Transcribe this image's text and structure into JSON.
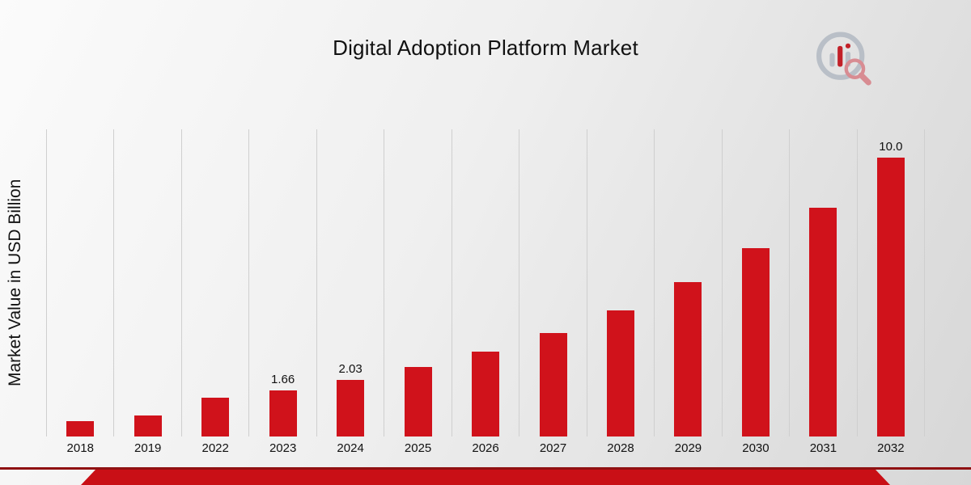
{
  "page": {
    "title": "Digital Adoption Platform Market"
  },
  "chart_data": {
    "type": "bar",
    "title": "Digital Adoption Platform Market",
    "xlabel": "",
    "ylabel": "Market Value in USD Billion",
    "categories": [
      "2018",
      "2019",
      "2022",
      "2023",
      "2024",
      "2025",
      "2026",
      "2027",
      "2028",
      "2029",
      "2030",
      "2031",
      "2032"
    ],
    "values": [
      0.55,
      0.75,
      1.38,
      1.66,
      2.03,
      2.48,
      3.03,
      3.7,
      4.52,
      5.52,
      6.74,
      8.19,
      10.0
    ],
    "data_labels": [
      "",
      "",
      "",
      "1.66",
      "2.03",
      "",
      "",
      "",
      "",
      "",
      "",
      "",
      "10.0"
    ],
    "ylim": [
      0,
      11
    ],
    "grid": "vertical",
    "legend": "none",
    "bar_color": "#d0121b",
    "grid_color": "#cfcfcf"
  },
  "branding": {
    "logo_name": "market-research-future-logo",
    "accent_dark_red": "#8f1112",
    "accent_red": "#c90f16"
  }
}
